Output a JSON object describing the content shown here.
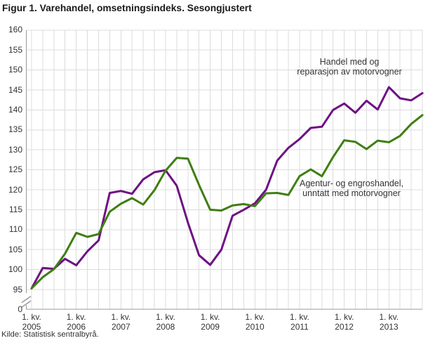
{
  "title": "Figur 1. Varehandel, omsetningsindeks. Sesongjustert",
  "source": "Kilde: Statistisk sentralbyrå.",
  "annotations": {
    "purple_label": [
      "Handel med og",
      "reparasjon av motorvogner"
    ],
    "green_label": [
      "Agentur- og engroshandel,",
      "unntatt med motorvogner"
    ]
  },
  "colors": {
    "purple": "#6e1085",
    "green": "#3f7e12",
    "grid": "#dcdcdc",
    "axis": "#999999",
    "tick_text": "#333333",
    "title_text": "#1a1a1a"
  },
  "chart_data": {
    "type": "line",
    "title": "Figur 1. Varehandel, omsetningsindeks. Sesongjustert",
    "xlabel": "",
    "ylabel": "",
    "ylim_display": [
      95,
      160
    ],
    "y_axis_break_to_zero": true,
    "grid": true,
    "legend_position": "inline-annotations",
    "y_ticks": [
      0,
      95,
      100,
      105,
      110,
      115,
      120,
      125,
      130,
      135,
      140,
      145,
      150,
      155,
      160
    ],
    "x_tick_labels": [
      {
        "line1": "1. kv.",
        "line2": "2005"
      },
      {
        "line1": "1. kv.",
        "line2": "2006"
      },
      {
        "line1": "1. kv.",
        "line2": "2007"
      },
      {
        "line1": "1. kv.",
        "line2": "2008"
      },
      {
        "line1": "1. kv.",
        "line2": "2009"
      },
      {
        "line1": "1. kv.",
        "line2": "2010"
      },
      {
        "line1": "1. kv.",
        "line2": "2011"
      },
      {
        "line1": "1. kv.",
        "line2": "2012"
      },
      {
        "line1": "1. kv.",
        "line2": "2013"
      }
    ],
    "x": [
      "2005K1",
      "2005K2",
      "2005K3",
      "2005K4",
      "2006K1",
      "2006K2",
      "2006K3",
      "2006K4",
      "2007K1",
      "2007K2",
      "2007K3",
      "2007K4",
      "2008K1",
      "2008K2",
      "2008K3",
      "2008K4",
      "2009K1",
      "2009K2",
      "2009K3",
      "2009K4",
      "2010K1",
      "2010K2",
      "2010K3",
      "2010K4",
      "2011K1",
      "2011K2",
      "2011K3",
      "2011K4",
      "2012K1",
      "2012K2",
      "2012K3",
      "2012K4",
      "2013K1",
      "2013K2",
      "2013K3",
      "2013K4"
    ],
    "series": [
      {
        "name": "Handel med og reparasjon av motorvogner",
        "color_key": "purple",
        "values": [
          95.3,
          100.4,
          100.2,
          102.7,
          101.1,
          104.6,
          107.3,
          119.2,
          119.7,
          119.0,
          122.6,
          124.4,
          124.9,
          121.0,
          111.8,
          103.6,
          101.2,
          105.0,
          113.5,
          115.0,
          116.6,
          120.0,
          127.3,
          130.5,
          132.7,
          135.5,
          135.8,
          140.0,
          141.6,
          139.3,
          142.3,
          140.1,
          145.7,
          142.9,
          142.4,
          144.2
        ]
      },
      {
        "name": "Agentur- og engroshandel, unntatt med motorvogner",
        "color_key": "green",
        "values": [
          95.3,
          98.1,
          100.1,
          104.0,
          109.2,
          108.2,
          108.9,
          114.5,
          116.5,
          117.9,
          116.3,
          119.9,
          124.8,
          128.0,
          127.8,
          121.2,
          115.0,
          114.8,
          116.1,
          116.4,
          115.9,
          119.1,
          119.2,
          118.7,
          123.4,
          125.1,
          123.4,
          128.2,
          132.4,
          132.0,
          130.2,
          132.3,
          131.9,
          133.5,
          136.5,
          138.7
        ]
      }
    ]
  }
}
